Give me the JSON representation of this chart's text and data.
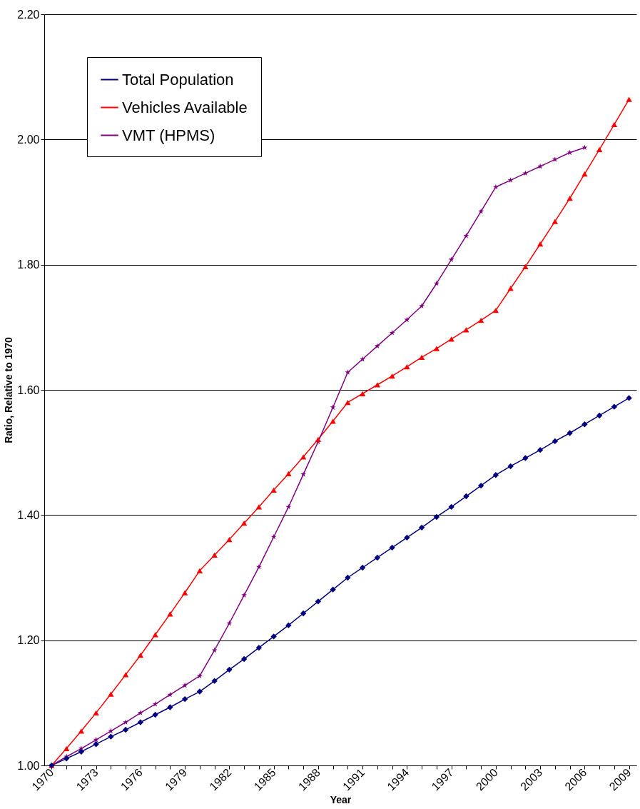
{
  "chart_data": {
    "type": "line",
    "xlabel": "Year",
    "ylabel": "Ratio, Relative to 1970",
    "categories": [
      "1970",
      null,
      null,
      "1973",
      null,
      null,
      "1976",
      null,
      null,
      "1979",
      null,
      null,
      "1982",
      null,
      null,
      "1985",
      null,
      null,
      "1988",
      null,
      null,
      "1991",
      null,
      null,
      "1994",
      null,
      null,
      "1997",
      null,
      null,
      "2000",
      null,
      null,
      "2003",
      null,
      null,
      "2006",
      null,
      null,
      "2009"
    ],
    "series": [
      {
        "name": "Total Population",
        "color": "#000080",
        "marker": "diamond",
        "values": [
          1.0,
          1.011,
          1.022,
          1.034,
          1.046,
          1.057,
          1.069,
          1.081,
          1.093,
          1.106,
          1.118,
          1.135,
          1.153,
          1.17,
          1.188,
          1.206,
          1.224,
          1.243,
          1.262,
          1.281,
          1.3,
          1.316,
          1.332,
          1.348,
          1.364,
          1.38,
          1.397,
          1.413,
          1.43,
          1.447,
          1.464,
          1.478,
          1.491,
          1.504,
          1.518,
          1.531,
          1.545,
          1.559,
          1.573,
          1.587
        ]
      },
      {
        "name": "Vehicles Available",
        "color": "#ff0000",
        "marker": "triangle",
        "values": [
          1.0,
          1.027,
          1.055,
          1.084,
          1.114,
          1.145,
          1.176,
          1.209,
          1.242,
          1.276,
          1.311,
          1.336,
          1.361,
          1.387,
          1.413,
          1.44,
          1.466,
          1.493,
          1.521,
          1.55,
          1.58,
          1.594,
          1.608,
          1.622,
          1.637,
          1.652,
          1.666,
          1.681,
          1.696,
          1.711,
          1.727,
          1.762,
          1.797,
          1.833,
          1.869,
          1.906,
          1.945,
          1.984,
          2.024,
          2.064
        ]
      },
      {
        "name": "VMT (HPMS)",
        "color": "#800080",
        "marker": "star",
        "values": [
          1.0,
          1.014,
          1.027,
          1.041,
          1.055,
          1.069,
          1.084,
          1.098,
          1.113,
          1.128,
          1.143,
          1.184,
          1.227,
          1.272,
          1.317,
          1.365,
          1.413,
          1.465,
          1.517,
          1.572,
          1.628,
          1.649,
          1.67,
          1.691,
          1.712,
          1.734,
          1.77,
          1.808,
          1.846,
          1.885,
          1.924,
          1.935,
          1.946,
          1.957,
          1.968,
          1.979,
          1.987,
          null,
          null,
          null
        ]
      }
    ],
    "ylim": [
      1.0,
      2.2
    ],
    "yticks": [
      {
        "value": 1.0,
        "label": "1.00"
      },
      {
        "value": 1.2,
        "label": "1.20"
      },
      {
        "value": 1.4,
        "label": "1.40"
      },
      {
        "value": 1.6,
        "label": "1.60"
      },
      {
        "value": 1.8,
        "label": "1.80"
      },
      {
        "value": 2.0,
        "label": "2.00"
      },
      {
        "value": 2.2,
        "label": "2.20"
      }
    ],
    "grid": "y",
    "legend": "top left"
  }
}
